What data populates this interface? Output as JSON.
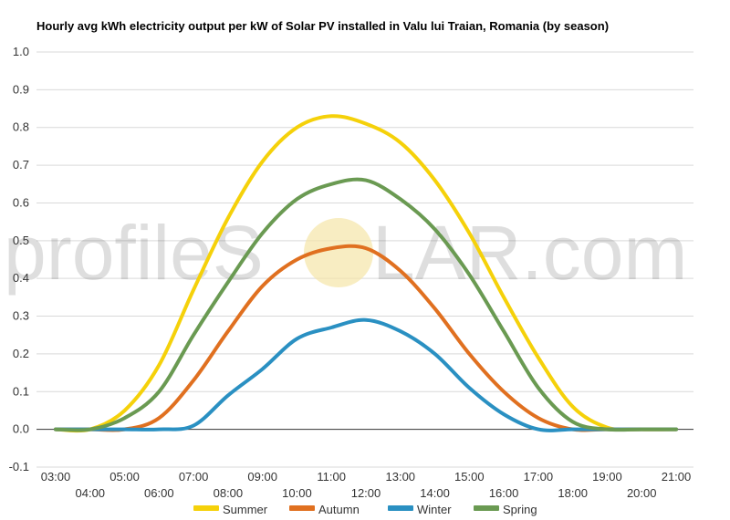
{
  "chart_data": {
    "type": "line",
    "title": "Hourly avg kWh electricity output per kW of Solar PV installed in Valu lui Traian, Romania (by season)",
    "xlabel": "",
    "ylabel": "",
    "ylim": [
      -0.1,
      1.0
    ],
    "yticks": [
      "-0.1",
      "0.0",
      "0.1",
      "0.2",
      "0.3",
      "0.4",
      "0.5",
      "0.6",
      "0.7",
      "0.8",
      "0.9",
      "1.0"
    ],
    "x": [
      "03:00",
      "04:00",
      "05:00",
      "06:00",
      "07:00",
      "08:00",
      "09:00",
      "10:00",
      "11:00",
      "12:00",
      "13:00",
      "14:00",
      "15:00",
      "16:00",
      "17:00",
      "18:00",
      "19:00",
      "20:00",
      "21:00"
    ],
    "grid": true,
    "legend_position": "bottom",
    "series": [
      {
        "name": "Summer",
        "color": "#f5d10a",
        "values": [
          0.0,
          0.0,
          0.05,
          0.17,
          0.37,
          0.56,
          0.71,
          0.8,
          0.83,
          0.81,
          0.76,
          0.66,
          0.52,
          0.35,
          0.19,
          0.06,
          0.005,
          0.0,
          0.0
        ]
      },
      {
        "name": "Autumn",
        "color": "#e07020",
        "values": [
          0.0,
          0.0,
          0.0,
          0.03,
          0.13,
          0.26,
          0.38,
          0.45,
          0.48,
          0.48,
          0.42,
          0.32,
          0.2,
          0.1,
          0.03,
          0.0,
          0.0,
          0.0,
          0.0
        ]
      },
      {
        "name": "Winter",
        "color": "#2a90c2",
        "values": [
          0.0,
          0.0,
          0.0,
          0.0,
          0.01,
          0.09,
          0.16,
          0.24,
          0.27,
          0.29,
          0.26,
          0.2,
          0.11,
          0.04,
          0.0,
          0.0,
          0.0,
          0.0,
          0.0
        ]
      },
      {
        "name": "Spring",
        "color": "#6a9a52",
        "values": [
          0.0,
          0.0,
          0.03,
          0.1,
          0.25,
          0.39,
          0.52,
          0.61,
          0.65,
          0.66,
          0.61,
          0.53,
          0.41,
          0.26,
          0.11,
          0.02,
          0.0,
          0.0,
          0.0
        ]
      }
    ]
  },
  "watermark": {
    "left": "profileS",
    "right": "LAR.com"
  }
}
